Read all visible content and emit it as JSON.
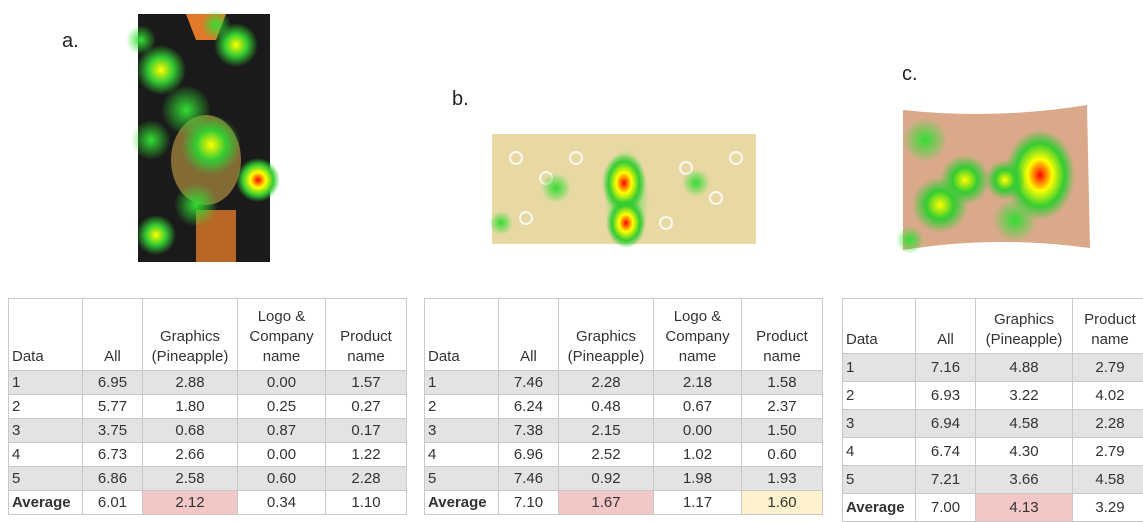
{
  "panels": [
    {
      "label": "a.",
      "table": {
        "header": [
          "Data",
          "All",
          "Graphics (Pineapple)",
          "Logo & Company name",
          "Product name"
        ],
        "rows": [
          [
            "1",
            "6.95",
            "2.88",
            "0.00",
            "1.57"
          ],
          [
            "2",
            "5.77",
            "1.80",
            "0.25",
            "0.27"
          ],
          [
            "3",
            "3.75",
            "0.68",
            "0.87",
            "0.17"
          ],
          [
            "4",
            "6.73",
            "2.66",
            "0.00",
            "1.22"
          ],
          [
            "5",
            "6.86",
            "2.58",
            "0.60",
            "2.28"
          ],
          [
            "Average",
            "6.01",
            "2.12",
            "0.34",
            "1.10"
          ]
        ],
        "highlights": [
          {
            "column": 2,
            "color": "#f4c7c7"
          }
        ]
      }
    },
    {
      "label": "b.",
      "table": {
        "header": [
          "Data",
          "All",
          "Graphics (Pineapple)",
          "Logo & Company name",
          "Product name"
        ],
        "rows": [
          [
            "1",
            "7.46",
            "2.28",
            "2.18",
            "1.58"
          ],
          [
            "2",
            "6.24",
            "0.48",
            "0.67",
            "2.37"
          ],
          [
            "3",
            "7.38",
            "2.15",
            "0.00",
            "1.50"
          ],
          [
            "4",
            "6.96",
            "2.52",
            "1.02",
            "0.60"
          ],
          [
            "5",
            "7.46",
            "0.92",
            "1.98",
            "1.93"
          ],
          [
            "Average",
            "7.10",
            "1.67",
            "1.17",
            "1.60"
          ]
        ],
        "highlights": [
          {
            "column": 2,
            "color": "#f4c7c7"
          },
          {
            "column": 4,
            "color": "#fff2cc"
          }
        ]
      }
    },
    {
      "label": "c.",
      "table": {
        "header": [
          "Data",
          "All",
          "Graphics (Pineapple)",
          "Product name"
        ],
        "rows": [
          [
            "1",
            "7.16",
            "4.88",
            "2.79"
          ],
          [
            "2",
            "6.93",
            "3.22",
            "4.02"
          ],
          [
            "3",
            "6.94",
            "4.58",
            "2.28"
          ],
          [
            "4",
            "6.74",
            "4.30",
            "2.79"
          ],
          [
            "5",
            "7.21",
            "3.66",
            "4.58"
          ],
          [
            "Average",
            "7.00",
            "4.13",
            "3.29"
          ]
        ],
        "highlights": [
          {
            "column": 2,
            "color": "#f4c7c7"
          }
        ]
      }
    }
  ]
}
